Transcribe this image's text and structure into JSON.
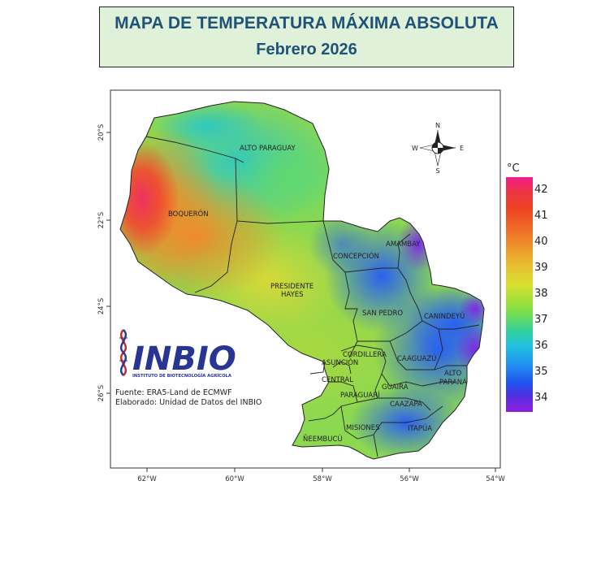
{
  "title": "MAPA DE TEMPERATURA MÁXIMA ABSOLUTA",
  "subtitle": "Febrero 2026",
  "legend": {
    "unit": "°C",
    "ticks": [
      "42",
      "41",
      "40",
      "39",
      "38",
      "37",
      "36",
      "35",
      "34"
    ]
  },
  "lon_labels": [
    "62°W",
    "60°W",
    "58°W",
    "56°W",
    "54°W"
  ],
  "lat_labels": [
    "20°S",
    "22°S",
    "24°S",
    "26°S"
  ],
  "regions": [
    "ALTO PARAGUAY",
    "BOQUERÓN",
    "PRESIDENTE",
    "HAYES",
    "CONCEPCIÓN",
    "AMAMBAY",
    "SAN PEDRO",
    "CANINDEYÚ",
    "CORDILLERA",
    "ASUNCIÓN",
    "CENTRAL",
    "CAAGUAZÚ",
    "ALTO",
    "PARANÁ",
    "GUAIRÁ",
    "PARAGUARÍ",
    "CAAZAPÁ",
    "MISIONES",
    "ITAPÚA",
    "ÑEEMBUCÚ"
  ],
  "compass": {
    "n": "N",
    "s": "S",
    "e": "E",
    "w": "W"
  },
  "logo": {
    "name": "INBIO",
    "tagline": "INSTITUTO DE BIOTECNOLOGÍA AGRÍCOLA"
  },
  "source": "Fuente: ERA5-Land de ECMWF",
  "credit": "Elaborado: Unidad de Datos del INBIO"
}
